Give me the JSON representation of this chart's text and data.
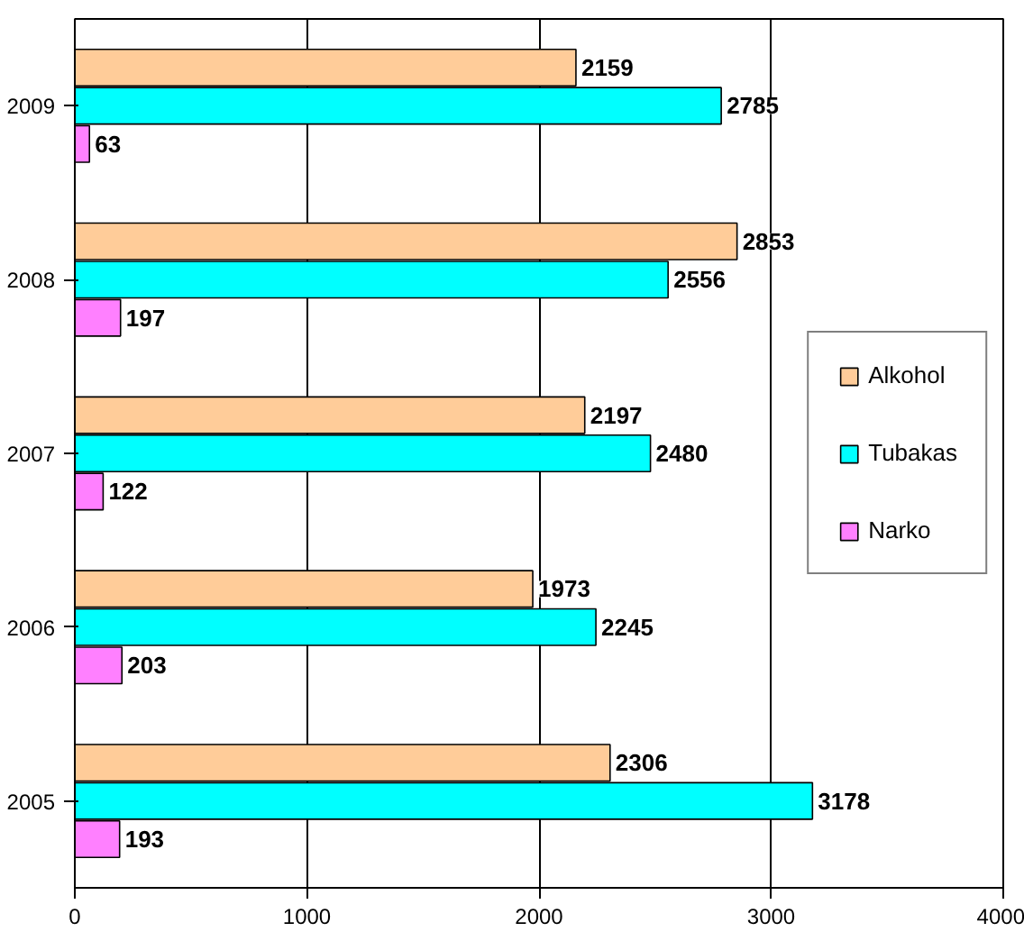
{
  "chart_data": {
    "type": "bar",
    "orientation": "horizontal",
    "categories": [
      "2009",
      "2008",
      "2007",
      "2006",
      "2005"
    ],
    "series": [
      {
        "name": "Alkohol",
        "color": "#ffcc99",
        "values": [
          2159,
          2853,
          2197,
          1973,
          2306
        ]
      },
      {
        "name": "Tubakas",
        "color": "#00ffff",
        "values": [
          2785,
          2556,
          2480,
          2245,
          3178
        ]
      },
      {
        "name": "Narko",
        "color": "#ff80ff",
        "values": [
          63,
          197,
          122,
          203,
          193
        ]
      }
    ],
    "xlim": [
      0,
      4000
    ],
    "xticks": [
      0,
      1000,
      2000,
      3000,
      4000
    ],
    "grid": "x",
    "legend": "right",
    "data_labels": true
  }
}
